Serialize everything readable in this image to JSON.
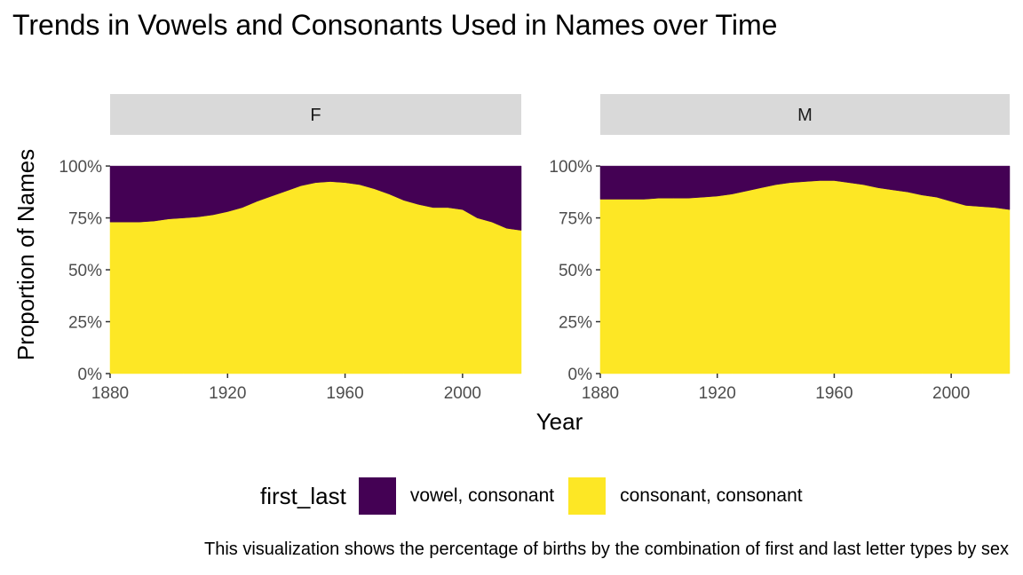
{
  "chart_data": {
    "type": "area",
    "stacked": "proportion",
    "title": "Trends in Vowels and Consonants Used in Names over Time",
    "xlabel": "Year",
    "ylabel": "Proportion of Names",
    "caption": "This visualization shows the percentage of births by the combination of first and last letter types by sex",
    "xlim": [
      1880,
      2020
    ],
    "ylim": [
      0,
      1.15
    ],
    "x_ticks": [
      1880,
      1920,
      1960,
      2000
    ],
    "x_tick_labels": [
      "1880",
      "1920",
      "1960",
      "2000"
    ],
    "y_ticks": [
      0,
      0.25,
      0.5,
      0.75,
      1.0
    ],
    "y_tick_labels": [
      "0%",
      "25%",
      "50%",
      "75%",
      "100%"
    ],
    "grid": false,
    "legend": {
      "title": "first_last",
      "position": "bottom",
      "entries": [
        {
          "label": "vowel, consonant",
          "color": "#440154"
        },
        {
          "label": "consonant, consonant",
          "color": "#FDE725"
        }
      ]
    },
    "panels": [
      {
        "facet": "F",
        "x": [
          1880,
          1885,
          1890,
          1895,
          1900,
          1905,
          1910,
          1915,
          1920,
          1925,
          1930,
          1935,
          1940,
          1945,
          1950,
          1955,
          1960,
          1965,
          1970,
          1975,
          1980,
          1985,
          1990,
          1995,
          2000,
          2005,
          2010,
          2015,
          2020
        ],
        "series": [
          {
            "name": "consonant, consonant",
            "values": [
              0.73,
              0.73,
              0.73,
              0.735,
              0.745,
              0.75,
              0.755,
              0.765,
              0.78,
              0.8,
              0.83,
              0.855,
              0.88,
              0.905,
              0.92,
              0.925,
              0.92,
              0.91,
              0.89,
              0.865,
              0.835,
              0.815,
              0.8,
              0.8,
              0.79,
              0.75,
              0.73,
              0.7,
              0.69
            ]
          },
          {
            "name": "vowel, consonant",
            "values": [
              0.27,
              0.27,
              0.27,
              0.265,
              0.255,
              0.25,
              0.245,
              0.235,
              0.22,
              0.2,
              0.17,
              0.145,
              0.12,
              0.095,
              0.08,
              0.075,
              0.08,
              0.09,
              0.11,
              0.135,
              0.165,
              0.185,
              0.2,
              0.2,
              0.21,
              0.25,
              0.27,
              0.3,
              0.31
            ]
          }
        ]
      },
      {
        "facet": "M",
        "x": [
          1880,
          1885,
          1890,
          1895,
          1900,
          1905,
          1910,
          1915,
          1920,
          1925,
          1930,
          1935,
          1940,
          1945,
          1950,
          1955,
          1960,
          1965,
          1970,
          1975,
          1980,
          1985,
          1990,
          1995,
          2000,
          2005,
          2010,
          2015,
          2020
        ],
        "series": [
          {
            "name": "consonant, consonant",
            "values": [
              0.84,
              0.84,
              0.84,
              0.84,
              0.845,
              0.845,
              0.845,
              0.85,
              0.855,
              0.865,
              0.88,
              0.895,
              0.91,
              0.92,
              0.925,
              0.93,
              0.93,
              0.92,
              0.91,
              0.895,
              0.885,
              0.875,
              0.86,
              0.85,
              0.83,
              0.81,
              0.805,
              0.8,
              0.79
            ]
          },
          {
            "name": "vowel, consonant",
            "values": [
              0.16,
              0.16,
              0.16,
              0.16,
              0.155,
              0.155,
              0.155,
              0.15,
              0.145,
              0.135,
              0.12,
              0.105,
              0.09,
              0.08,
              0.075,
              0.07,
              0.07,
              0.08,
              0.09,
              0.105,
              0.115,
              0.125,
              0.14,
              0.15,
              0.17,
              0.19,
              0.195,
              0.2,
              0.21
            ]
          }
        ]
      }
    ]
  }
}
